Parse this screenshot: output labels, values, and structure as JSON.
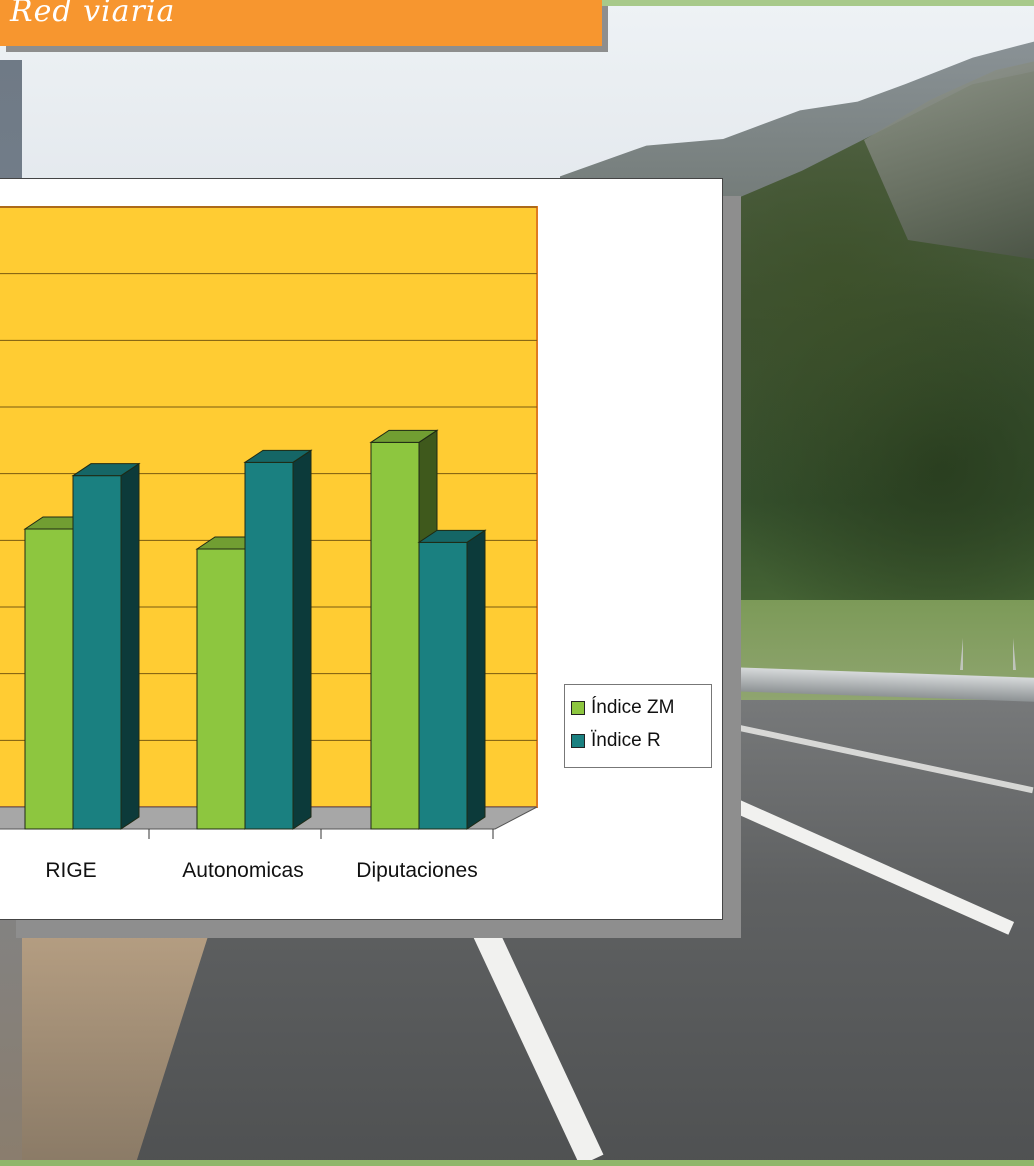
{
  "title": "Red viaria",
  "chart_data": {
    "type": "bar",
    "categories": [
      "RIGE",
      "Autonomicas",
      "Diputaciones"
    ],
    "series": [
      {
        "name": "Índice ZM",
        "values": [
          4.5,
          4.2,
          5.8
        ],
        "color": "#8dc63f"
      },
      {
        "name": "Ïndice R",
        "values": [
          5.3,
          5.5,
          4.3
        ],
        "color": "#1a8080"
      }
    ],
    "ylim": [
      0,
      9
    ],
    "grid": true,
    "legend_position": "right",
    "plot_background": "#ffcc33",
    "xlabel": "",
    "ylabel": ""
  }
}
